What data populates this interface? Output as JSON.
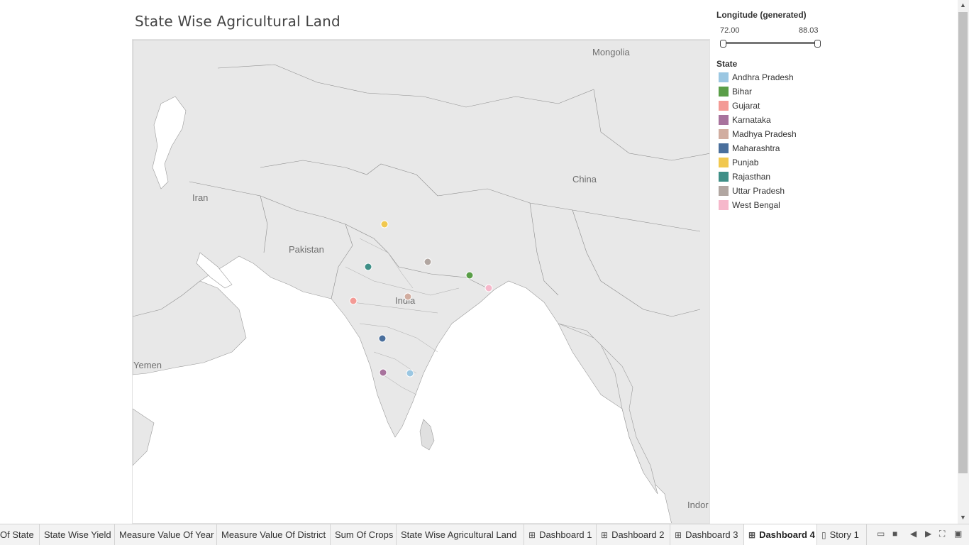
{
  "title": "State Wise Agricultural Land",
  "map": {
    "labels": [
      {
        "text": "Mongolia"
      },
      {
        "text": "China"
      },
      {
        "text": "Iran"
      },
      {
        "text": "Pakistan"
      },
      {
        "text": "India"
      },
      {
        "text": "Yemen"
      },
      {
        "text": "Indor"
      }
    ],
    "points": [
      {
        "state": "Punjab",
        "color": "#f1c84f"
      },
      {
        "state": "Rajasthan",
        "color": "#3f8f87"
      },
      {
        "state": "Uttar Pradesh",
        "color": "#b1a6a1"
      },
      {
        "state": "Bihar",
        "color": "#5a9e48"
      },
      {
        "state": "West Bengal",
        "color": "#f6b8cb"
      },
      {
        "state": "Madhya Pradesh",
        "color": "#d1ada0"
      },
      {
        "state": "Gujarat",
        "color": "#f39a95"
      },
      {
        "state": "Maharashtra",
        "color": "#4a6f9c"
      },
      {
        "state": "Karnataka",
        "color": "#a8739d"
      },
      {
        "state": "Andhra Pradesh",
        "color": "#9bc7e2"
      }
    ]
  },
  "filter": {
    "title": "Longitude (generated)",
    "min": "72.00",
    "max": "88.03"
  },
  "legend": {
    "title": "State",
    "items": [
      {
        "label": "Andhra Pradesh",
        "color": "#9bc7e2"
      },
      {
        "label": "Bihar",
        "color": "#5a9e48"
      },
      {
        "label": "Gujarat",
        "color": "#f39a95"
      },
      {
        "label": "Karnataka",
        "color": "#a8739d"
      },
      {
        "label": "Madhya Pradesh",
        "color": "#d1ada0"
      },
      {
        "label": "Maharashtra",
        "color": "#4a6f9c"
      },
      {
        "label": "Punjab",
        "color": "#f1c84f"
      },
      {
        "label": "Rajasthan",
        "color": "#3f8f87"
      },
      {
        "label": "Uttar Pradesh",
        "color": "#b1a6a1"
      },
      {
        "label": "West Bengal",
        "color": "#f6b8cb"
      }
    ]
  },
  "tabs": [
    {
      "label": "Of State",
      "icon": ""
    },
    {
      "label": "State Wise Yield",
      "icon": ""
    },
    {
      "label": "Measure Value Of Year",
      "icon": ""
    },
    {
      "label": "Measure Value Of District",
      "icon": ""
    },
    {
      "label": "Sum Of Crops",
      "icon": ""
    },
    {
      "label": "State Wise Agricultural Land",
      "icon": ""
    },
    {
      "label": "Dashboard 1",
      "icon": "dashboard-icon"
    },
    {
      "label": "Dashboard 2",
      "icon": "dashboard-icon"
    },
    {
      "label": "Dashboard 3",
      "icon": "dashboard-icon"
    },
    {
      "label": "Dashboard 4",
      "icon": "dashboard-icon",
      "active": true
    },
    {
      "label": "Story 1",
      "icon": "story-icon"
    }
  ]
}
